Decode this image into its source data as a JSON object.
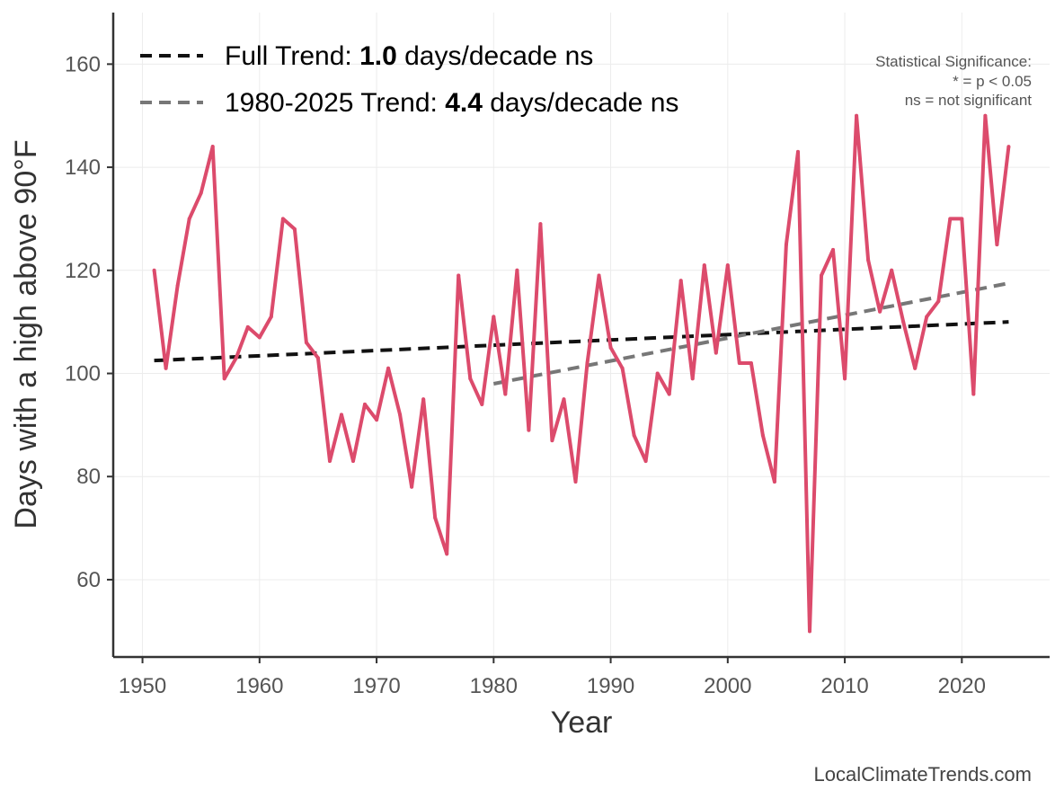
{
  "chart_data": {
    "type": "line",
    "xlabel": "Year",
    "ylabel": "Days with a high above 90°F",
    "xlim": [
      1947.5,
      2027.5
    ],
    "ylim": [
      45,
      170
    ],
    "x_ticks": [
      1950,
      1960,
      1970,
      1980,
      1990,
      2000,
      2010,
      2020
    ],
    "y_ticks": [
      60,
      80,
      100,
      120,
      140,
      160
    ],
    "grid": true,
    "series": [
      {
        "name": "Days with a high above 90°F",
        "color": "#dc4b6c",
        "x": [
          1951,
          1952,
          1953,
          1954,
          1955,
          1956,
          1957,
          1958,
          1959,
          1960,
          1961,
          1962,
          1963,
          1964,
          1965,
          1966,
          1967,
          1968,
          1969,
          1970,
          1971,
          1972,
          1973,
          1974,
          1975,
          1976,
          1977,
          1978,
          1979,
          1980,
          1981,
          1982,
          1983,
          1984,
          1985,
          1986,
          1987,
          1988,
          1989,
          1990,
          1991,
          1992,
          1993,
          1994,
          1995,
          1996,
          1997,
          1998,
          1999,
          2000,
          2001,
          2002,
          2003,
          2004,
          2005,
          2006,
          2007,
          2008,
          2009,
          2010,
          2011,
          2012,
          2013,
          2014,
          2015,
          2016,
          2017,
          2018,
          2019,
          2020,
          2021,
          2022,
          2023,
          2024
        ],
        "values": [
          120,
          101,
          117,
          130,
          135,
          144,
          99,
          103,
          109,
          107,
          111,
          130,
          128,
          106,
          103,
          83,
          92,
          83,
          94,
          91,
          101,
          92,
          78,
          95,
          72,
          65,
          119,
          99,
          94,
          111,
          96,
          120,
          89,
          129,
          87,
          95,
          79,
          102,
          119,
          105,
          101,
          88,
          83,
          100,
          96,
          118,
          99,
          121,
          104,
          121,
          102,
          102,
          88,
          79,
          125,
          143,
          50,
          119,
          124,
          99,
          150,
          122,
          112,
          120,
          110,
          101,
          111,
          114,
          130,
          130,
          96,
          150,
          125,
          144
        ]
      }
    ],
    "trends": [
      {
        "name": "Full Trend",
        "label_prefix": "Full Trend: ",
        "rate": "1.0",
        "label_suffix": " days/decade ns",
        "color": "#111111",
        "x": [
          1951,
          2024
        ],
        "y": [
          102.5,
          110
        ]
      },
      {
        "name": "1980-2025 Trend",
        "label_prefix": "1980-2025 Trend: ",
        "rate": "4.4",
        "label_suffix": " days/decade ns",
        "color": "#777777",
        "x": [
          1980,
          2024
        ],
        "y": [
          98,
          117.5
        ]
      }
    ],
    "significance_note": {
      "title": "Statistical Significance:",
      "line1": "* = p < 0.05",
      "line2": "ns = not significant"
    },
    "caption": "LocalClimateTrends.com"
  }
}
